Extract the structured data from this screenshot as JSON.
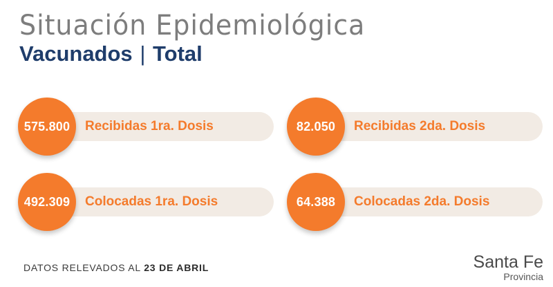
{
  "header": {
    "title": "Situación Epidemiológica",
    "subtitle_left": "Vacunados",
    "subtitle_sep": "|",
    "subtitle_right": "Total"
  },
  "stats": [
    {
      "value": "575.800",
      "label": "Recibidas 1ra. Dosis"
    },
    {
      "value": "82.050",
      "label": "Recibidas 2da. Dosis"
    },
    {
      "value": "492.309",
      "label": "Colocadas 1ra. Dosis"
    },
    {
      "value": "64.388",
      "label": "Colocadas 2da. Dosis"
    }
  ],
  "footer": {
    "note_prefix": "DATOS RELEVADOS AL",
    "note_date": "23 DE ABRIL"
  },
  "brand": {
    "line1": "Santa Fe",
    "line2": "Provincia"
  },
  "colors": {
    "accent": "#f47b2c",
    "pill": "#f2ebe4",
    "title_gray": "#7d7d7d",
    "subtitle_navy": "#1f3d6b"
  }
}
